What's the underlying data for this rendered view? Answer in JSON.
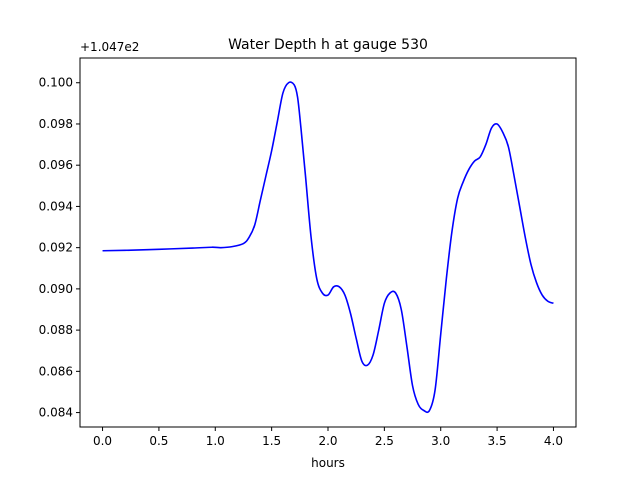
{
  "chart_data": {
    "type": "line",
    "title": "Water Depth h at gauge 530",
    "xlabel": "hours",
    "ylabel": "",
    "offset_label": "+1.047e2",
    "xlim": [
      -0.2,
      4.2
    ],
    "ylim": [
      0.0833,
      0.1012
    ],
    "xticks": [
      0.0,
      0.5,
      1.0,
      1.5,
      2.0,
      2.5,
      3.0,
      3.5,
      4.0
    ],
    "xtick_labels": [
      "0.0",
      "0.5",
      "1.0",
      "1.5",
      "2.0",
      "2.5",
      "3.0",
      "3.5",
      "4.0"
    ],
    "yticks": [
      0.084,
      0.086,
      0.088,
      0.09,
      0.092,
      0.094,
      0.096,
      0.098,
      0.1
    ],
    "ytick_labels": [
      "0.084",
      "0.086",
      "0.088",
      "0.090",
      "0.092",
      "0.094",
      "0.096",
      "0.098",
      "0.100"
    ],
    "grid": false,
    "series": [
      {
        "color": "#0000ff",
        "x": [
          0.0,
          0.2,
          0.5,
          0.8,
          0.97,
          1.05,
          1.15,
          1.25,
          1.3,
          1.35,
          1.4,
          1.45,
          1.5,
          1.55,
          1.6,
          1.65,
          1.7,
          1.73,
          1.76,
          1.8,
          1.85,
          1.9,
          1.95,
          2.0,
          2.05,
          2.1,
          2.15,
          2.2,
          2.25,
          2.3,
          2.35,
          2.4,
          2.45,
          2.5,
          2.55,
          2.6,
          2.65,
          2.7,
          2.75,
          2.8,
          2.85,
          2.9,
          2.95,
          3.0,
          3.05,
          3.1,
          3.15,
          3.2,
          3.25,
          3.3,
          3.35,
          3.4,
          3.45,
          3.5,
          3.55,
          3.6,
          3.65,
          3.7,
          3.75,
          3.8,
          3.85,
          3.9,
          3.95,
          4.0
        ],
        "y": [
          0.09185,
          0.09187,
          0.09192,
          0.09198,
          0.09202,
          0.092,
          0.09205,
          0.0922,
          0.0925,
          0.0931,
          0.0943,
          0.0955,
          0.0967,
          0.0981,
          0.0995,
          0.1,
          0.0999,
          0.0993,
          0.0978,
          0.0955,
          0.0925,
          0.0905,
          0.0898,
          0.0897,
          0.0901,
          0.0901,
          0.0897,
          0.0888,
          0.0876,
          0.0865,
          0.0863,
          0.0868,
          0.088,
          0.0893,
          0.0898,
          0.0898,
          0.089,
          0.0872,
          0.0853,
          0.0844,
          0.0841,
          0.0841,
          0.0851,
          0.0878,
          0.0905,
          0.0928,
          0.0944,
          0.0952,
          0.0958,
          0.0962,
          0.0964,
          0.097,
          0.0978,
          0.098,
          0.0976,
          0.0969,
          0.0955,
          0.094,
          0.0925,
          0.0912,
          0.0903,
          0.0897,
          0.0894,
          0.0893
        ]
      }
    ]
  }
}
